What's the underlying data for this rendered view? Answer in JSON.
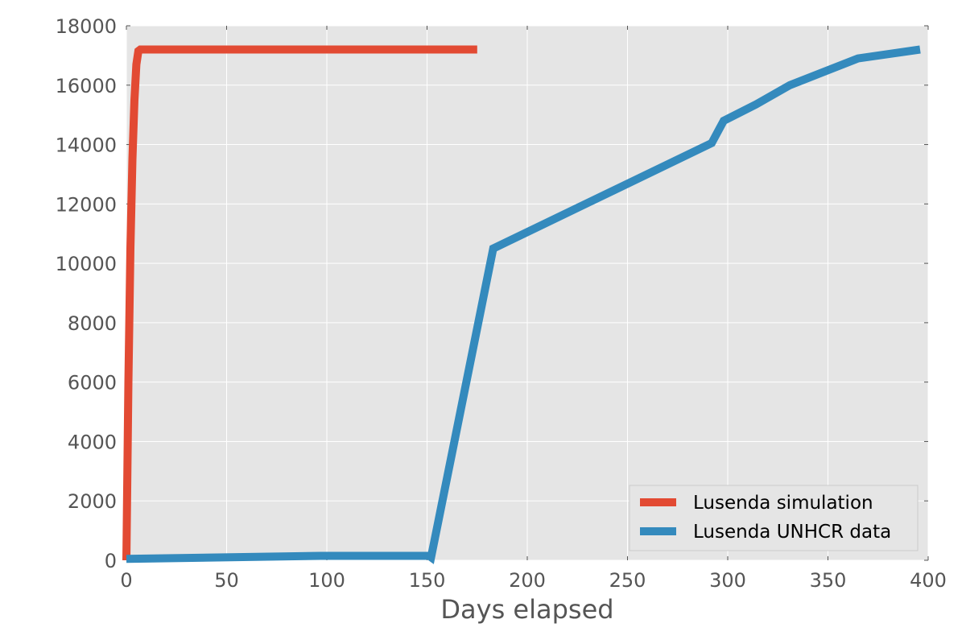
{
  "chart_data": {
    "type": "line",
    "title": "",
    "xlabel": "Days elapsed",
    "ylabel": "",
    "xlim": [
      0,
      400
    ],
    "ylim": [
      0,
      18000
    ],
    "x_ticks": [
      0,
      50,
      100,
      150,
      200,
      250,
      300,
      350,
      400
    ],
    "y_ticks": [
      0,
      2000,
      4000,
      6000,
      8000,
      10000,
      12000,
      14000,
      16000,
      18000
    ],
    "grid": true,
    "legend_position": "bottom-right",
    "series": [
      {
        "name": "Lusenda simulation",
        "color": "#e24a33",
        "x": [
          0,
          1,
          2,
          3,
          4,
          5,
          6,
          7,
          175
        ],
        "y": [
          0,
          6000,
          10500,
          13500,
          15500,
          16700,
          17150,
          17200,
          17200
        ]
      },
      {
        "name": "Lusenda UNHCR data",
        "color": "#348abd",
        "x": [
          0,
          97,
          151,
          152,
          183,
          292,
          298,
          314,
          331,
          365,
          396
        ],
        "y": [
          50,
          150,
          150,
          100,
          10500,
          14050,
          14800,
          15350,
          16000,
          16900,
          17200
        ]
      }
    ]
  }
}
